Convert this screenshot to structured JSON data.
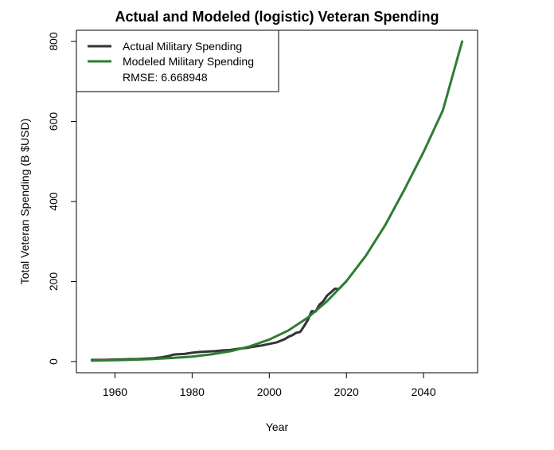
{
  "chart_data": {
    "type": "line",
    "title": "Actual and Modeled (logistic) Veteran Spending",
    "xlabel": "Year",
    "ylabel": "Total Veteran Spending (B $USD)",
    "xlim": [
      1950,
      2054
    ],
    "ylim": [
      -28,
      828
    ],
    "x_ticks": [
      1960,
      1980,
      2000,
      2020,
      2040
    ],
    "y_ticks": [
      0,
      200,
      400,
      600,
      800
    ],
    "legend": {
      "position": "top-left",
      "items": [
        "Actual Military Spending",
        "Modeled Military Spending"
      ],
      "note": "RMSE: 6.668948"
    },
    "colors": {
      "actual": "#333333",
      "modeled": "#2e7d32"
    },
    "series": [
      {
        "name": "Actual Military Spending",
        "x": [
          1954,
          1956,
          1958,
          1960,
          1962,
          1964,
          1966,
          1968,
          1970,
          1972,
          1974,
          1975,
          1976,
          1978,
          1980,
          1982,
          1984,
          1986,
          1988,
          1990,
          1992,
          1994,
          1996,
          1998,
          2000,
          2001,
          2002,
          2003,
          2004,
          2005,
          2006,
          2007,
          2008,
          2009,
          2010,
          2011,
          2012,
          2013,
          2014,
          2015,
          2016,
          2017,
          2018,
          2019,
          2020
        ],
        "values": [
          4,
          4,
          4.5,
          5,
          5.5,
          6,
          6.5,
          7.5,
          8.5,
          10.5,
          14,
          17,
          18,
          19,
          22,
          24,
          25,
          26,
          28,
          29,
          32,
          34,
          37,
          40,
          44,
          46,
          48,
          52,
          56,
          62,
          66,
          72,
          74,
          88,
          104,
          126,
          125,
          142,
          151,
          165,
          173,
          182,
          181,
          191,
          201
        ]
      },
      {
        "name": "Modeled Military Spending",
        "x": [
          1954,
          1960,
          1965,
          1970,
          1975,
          1980,
          1985,
          1990,
          1995,
          2000,
          2005,
          2010,
          2015,
          2020,
          2025,
          2030,
          2035,
          2040,
          2045,
          2050
        ],
        "values": [
          2.5,
          3.5,
          4.7,
          6.5,
          9,
          12.5,
          18,
          26,
          38,
          55,
          78,
          110,
          151,
          201,
          264,
          340,
          429,
          524,
          628,
          800
        ]
      }
    ]
  }
}
